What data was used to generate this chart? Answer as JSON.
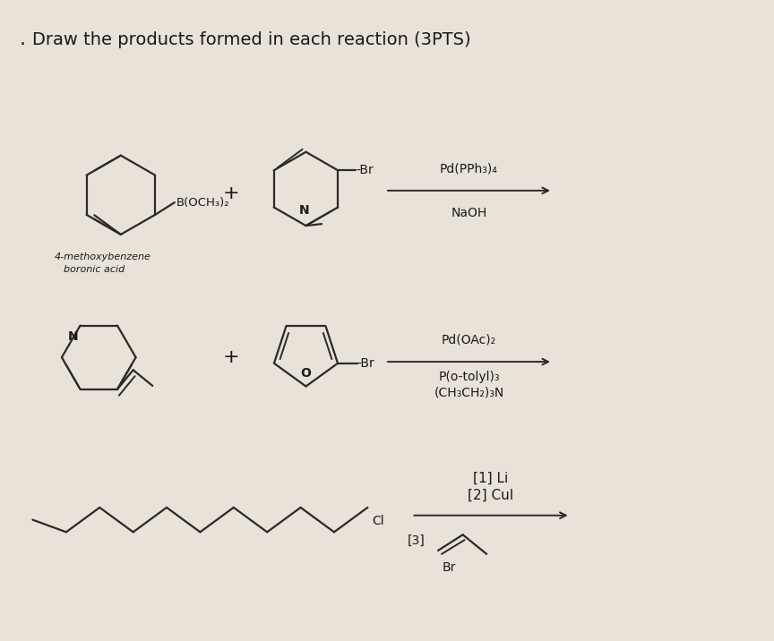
{
  "background_color": "#e8e2d8",
  "title_text": "Draw the products formed in each reaction (3PTS)",
  "title_fontsize": 14,
  "line_color": "#2a2a2a",
  "text_color": "#1a1a1a",
  "structure_color": "#2a2a2a",
  "r1_catalyst": "Pd(PPh₃)₄",
  "r1_base": "NaOH",
  "r1_sublabel": "4-methoxybenzene\nboronic acid",
  "r2_catalyst": "Pd(OAc)₂",
  "r2_ligand": "P(o-tolyl)₃",
  "r2_base": "(CH₃CH₂)₃N",
  "r3_step1": "[1] Li",
  "r3_step2": "[2] CuI",
  "r3_step3": "[3]",
  "r3_br": "Br"
}
